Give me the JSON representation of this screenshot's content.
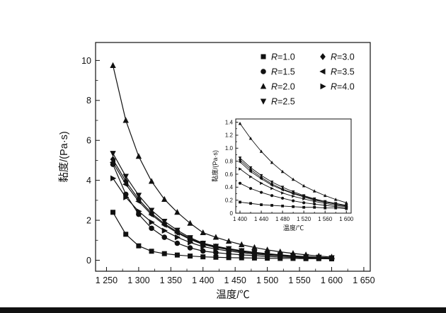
{
  "figure": {
    "background": "#ffffff",
    "line_color": "#111111"
  },
  "chart_data": {
    "type": "line",
    "title": "",
    "xlabel": "温度/℃",
    "ylabel": "黏度/(Pa·s)",
    "grid": false,
    "legend_position": "top-right-inside",
    "xlim": [
      1233,
      1660
    ],
    "ylim": [
      -0.55,
      10.9
    ],
    "x_ticks": [
      1250,
      1300,
      1350,
      1400,
      1450,
      1500,
      1550,
      1600,
      1650
    ],
    "x_tick_labels": [
      "1 250",
      "1 300",
      "1 350",
      "1 400",
      "1 450",
      "1 500",
      "1 550",
      "1 600",
      "1 650"
    ],
    "y_ticks": [
      0,
      2,
      4,
      6,
      8,
      10
    ],
    "y_tick_labels": [
      "0",
      "2",
      "4",
      "6",
      "8",
      "10"
    ],
    "x": [
      1260,
      1280,
      1300,
      1320,
      1340,
      1360,
      1380,
      1400,
      1420,
      1440,
      1460,
      1480,
      1500,
      1520,
      1540,
      1560,
      1580,
      1600
    ],
    "series": [
      {
        "name": "R=1.0",
        "marker": "square",
        "values": [
          2.4,
          1.3,
          0.72,
          0.45,
          0.33,
          0.26,
          0.21,
          0.17,
          0.15,
          0.13,
          0.12,
          0.11,
          0.1,
          0.09,
          0.09,
          0.08,
          0.08,
          0.07
        ]
      },
      {
        "name": "R=1.5",
        "marker": "circle",
        "values": [
          4.8,
          3.3,
          2.3,
          1.6,
          1.15,
          0.85,
          0.62,
          0.46,
          0.38,
          0.32,
          0.27,
          0.23,
          0.19,
          0.16,
          0.14,
          0.12,
          0.1,
          0.08
        ]
      },
      {
        "name": "R=2.0",
        "marker": "triangle-up",
        "values": [
          9.75,
          7.0,
          5.2,
          3.95,
          3.05,
          2.4,
          1.85,
          1.38,
          1.15,
          0.95,
          0.78,
          0.64,
          0.52,
          0.42,
          0.34,
          0.27,
          0.21,
          0.16
        ]
      },
      {
        "name": "R=2.5",
        "marker": "triangle-down",
        "values": [
          5.35,
          4.2,
          3.25,
          2.5,
          1.95,
          1.5,
          1.13,
          0.85,
          0.7,
          0.58,
          0.48,
          0.4,
          0.33,
          0.27,
          0.22,
          0.18,
          0.15,
          0.12
        ]
      },
      {
        "name": "R=3.0",
        "marker": "diamond",
        "values": [
          5.05,
          3.95,
          3.05,
          2.35,
          1.83,
          1.42,
          1.08,
          0.82,
          0.67,
          0.55,
          0.45,
          0.37,
          0.31,
          0.26,
          0.21,
          0.17,
          0.14,
          0.11
        ]
      },
      {
        "name": "R=3.5",
        "marker": "triangle-left",
        "values": [
          4.9,
          3.8,
          2.95,
          2.28,
          1.77,
          1.37,
          1.04,
          0.79,
          0.64,
          0.53,
          0.43,
          0.36,
          0.3,
          0.25,
          0.2,
          0.17,
          0.14,
          0.11
        ]
      },
      {
        "name": "R=4.0",
        "marker": "triangle-right",
        "values": [
          4.1,
          3.15,
          2.45,
          1.9,
          1.48,
          1.15,
          0.89,
          0.68,
          0.56,
          0.46,
          0.38,
          0.31,
          0.26,
          0.22,
          0.18,
          0.15,
          0.12,
          0.1
        ]
      }
    ],
    "legend": {
      "entries": [
        {
          "label": "R=1.0",
          "marker": "square"
        },
        {
          "label": "R=1.5",
          "marker": "circle"
        },
        {
          "label": "R=2.0",
          "marker": "triangle-up"
        },
        {
          "label": "R=2.5",
          "marker": "triangle-down"
        },
        {
          "label": "R=3.0",
          "marker": "diamond"
        },
        {
          "label": "R=3.5",
          "marker": "triangle-left"
        },
        {
          "label": "R=4.0",
          "marker": "triangle-right"
        }
      ]
    },
    "inset": {
      "xlabel": "温度/℃",
      "ylabel": "黏度/(Pa·s)",
      "xlim": [
        1392,
        1609
      ],
      "ylim": [
        0,
        1.45
      ],
      "x_ticks": [
        1400,
        1440,
        1480,
        1520,
        1560,
        1600
      ],
      "x_tick_labels": [
        "1 400",
        "1 440",
        "1 480",
        "1 520",
        "1 560",
        "1 600"
      ],
      "y_ticks": [
        0,
        0.2,
        0.4,
        0.6,
        0.8,
        1.0,
        1.2,
        1.4
      ],
      "y_tick_labels": [
        "0",
        "0.2",
        "0.4",
        "0.6",
        "0.8",
        "1.0",
        "1.2",
        "1.4"
      ],
      "x_min_shown": 1400
    }
  }
}
